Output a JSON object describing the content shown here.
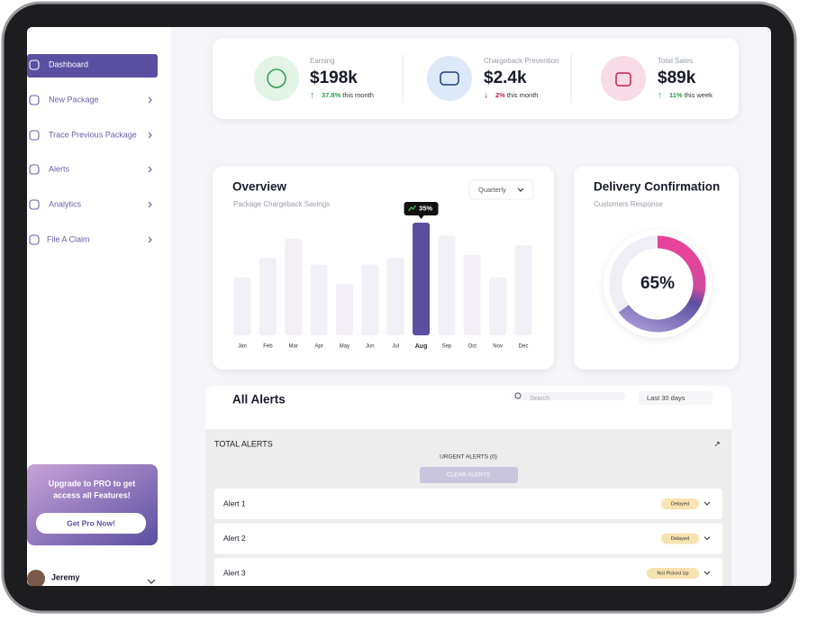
{
  "sidebar": {
    "menu": [
      "Dashboard",
      "New Package",
      "Trace Previous Package",
      "Alerts",
      "Analytics",
      "File A Claim"
    ],
    "upgrade": {
      "line1": "Upgrade to  PRO to get",
      "line2": "access all Features!",
      "button": "Get Pro Now!"
    },
    "user": "Jeremy"
  },
  "stats": [
    {
      "label": "Earning",
      "value": "$198k",
      "change": "37.8%",
      "period": "this month"
    },
    {
      "label": "Chargeback Prevention",
      "value": "$2.4k",
      "change": "2%",
      "period": "this month"
    },
    {
      "label": "Total Sales",
      "value": "$89k",
      "change": "11%",
      "period": "this week"
    }
  ],
  "overview": {
    "title": "Overview",
    "subtitle": "Package Chargeback Savings",
    "filter": "Quarterly",
    "chart": {
      "type": "bar",
      "categories": [
        "Jan",
        "Feb",
        "Mar",
        "Apr",
        "May",
        "Jun",
        "Jul",
        "Aug",
        "Sep",
        "Oct",
        "Nov",
        "Dec"
      ],
      "values": [
        18,
        24,
        30,
        22,
        16,
        22,
        24,
        35,
        31,
        25,
        18,
        28
      ],
      "value_labels": [
        null,
        null,
        null,
        null,
        null,
        null,
        null,
        "35%",
        null,
        null,
        null,
        null
      ],
      "color": "#5b4fa1",
      "base_color": "#f2f0f6"
    }
  },
  "delivery": {
    "title": "Delivery Confirmation",
    "subtitle": "Customers Response",
    "chart": {
      "type": "donut",
      "values": [
        65
      ],
      "value_labels": [
        "65%"
      ]
    }
  },
  "alerts": {
    "title": "All Alerts",
    "search": "Search",
    "range": "Last 30 days",
    "total": "TOTAL ALERTS",
    "urgent": "URGENT ALERTS (0)",
    "clear": "CLEAR ALERTS",
    "rows": [
      {
        "name": "Alert 1",
        "status": "Delayed"
      },
      {
        "name": "Alert 2",
        "status": "Delayed"
      },
      {
        "name": "Alert 3",
        "status": "Not Picked Up"
      }
    ]
  }
}
